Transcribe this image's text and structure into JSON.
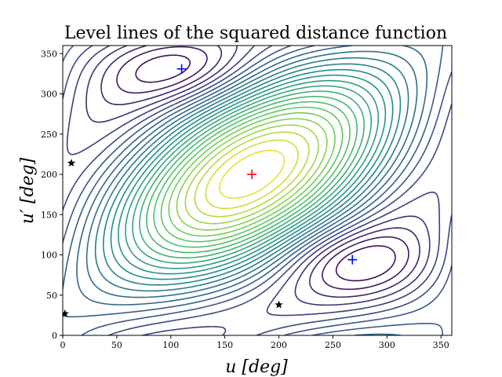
{
  "chart_data": {
    "type": "contour",
    "title": "Level lines of the squared distance function",
    "xlabel": "u [deg]",
    "ylabel": "u′ [deg]",
    "xlim": [
      0,
      360
    ],
    "ylim": [
      0,
      360
    ],
    "x_ticks": [
      0,
      50,
      100,
      150,
      200,
      250,
      300,
      350
    ],
    "y_ticks": [
      0,
      50,
      100,
      150,
      200,
      250,
      300,
      350
    ],
    "grid": false,
    "colormap": [
      "#440154",
      "#3b528b",
      "#21918c",
      "#5ec962",
      "#fde725"
    ],
    "maximum": {
      "u": 175,
      "u_prime": 200,
      "color": "#ff0000"
    },
    "minima": [
      {
        "u": 110,
        "u_prime": 331,
        "color": "#0000ff"
      },
      {
        "u": 268,
        "u_prime": 94,
        "color": "#0000ff"
      }
    ],
    "saddles": [
      {
        "u": 8,
        "u_prime": 214
      },
      {
        "u": 2,
        "u_prime": 27
      },
      {
        "u": 200,
        "u_prime": 38
      }
    ]
  }
}
